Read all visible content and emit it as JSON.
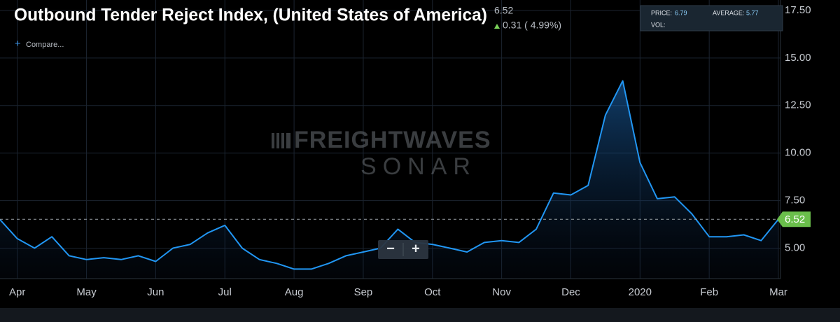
{
  "chart_data": {
    "type": "line",
    "title": "Outbound Tender Reject Index, (United States of America)",
    "last_value": 6.52,
    "change_text": "0.31 ( 4.99%)",
    "compare_label": "Compare...",
    "price_label": "PRICE:",
    "price": 6.79,
    "average_label": "AVERAGE:",
    "average": 5.77,
    "vol_label": "VOL:",
    "watermark_top": "FREIGHTWAVES",
    "watermark_bottom": "SONAR",
    "zoom_out": "−",
    "zoom_in": "+",
    "categories": [
      null,
      "Apr",
      null,
      null,
      null,
      "May",
      null,
      null,
      null,
      "Jun",
      null,
      null,
      null,
      "Jul",
      null,
      null,
      null,
      "Aug",
      null,
      null,
      null,
      "Sep",
      null,
      null,
      null,
      "Oct",
      null,
      null,
      null,
      "Nov",
      null,
      null,
      null,
      "Dec",
      null,
      null,
      null,
      "2020",
      null,
      null,
      null,
      "Feb",
      null,
      null,
      null,
      "Mar"
    ],
    "series": [
      {
        "name": "Outbound Tender Reject Index",
        "color": "#2196f3",
        "values": [
          6.5,
          5.5,
          5.0,
          5.6,
          4.6,
          4.4,
          4.5,
          4.4,
          4.6,
          4.3,
          5.0,
          5.2,
          5.8,
          6.2,
          5.0,
          4.4,
          4.2,
          3.9,
          3.9,
          4.2,
          4.6,
          4.8,
          5.0,
          6.0,
          5.3,
          5.2,
          5.0,
          4.8,
          5.3,
          5.4,
          5.3,
          6.0,
          7.9,
          7.8,
          8.3,
          12.0,
          13.8,
          9.5,
          7.6,
          7.7,
          6.8,
          5.6,
          5.6,
          5.7,
          5.4,
          6.52
        ]
      }
    ],
    "ylim": [
      3.4,
      18.05
    ],
    "yticks": [
      {
        "value": 5,
        "label": "5.00"
      },
      {
        "value": 7.5,
        "label": "7.50"
      },
      {
        "value": 10,
        "label": "10.00"
      },
      {
        "value": 12.5,
        "label": "12.50"
      },
      {
        "value": 15,
        "label": "15.00"
      },
      {
        "value": 17.5,
        "label": "17.50"
      }
    ],
    "grid": true
  }
}
